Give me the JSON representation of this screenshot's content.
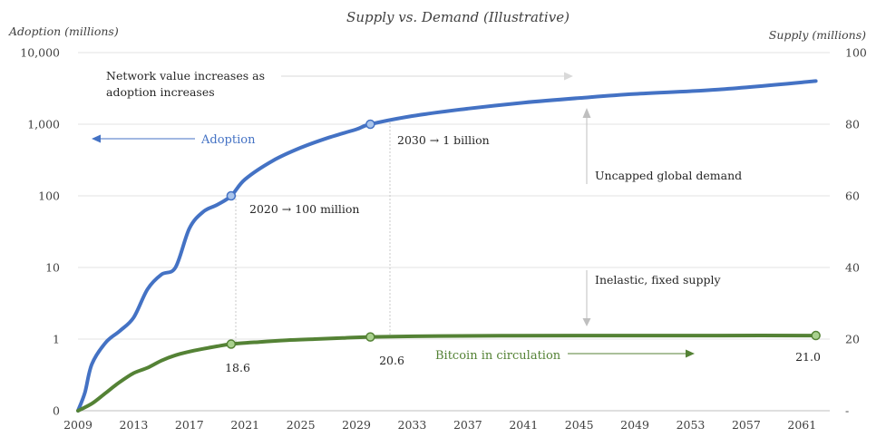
{
  "chart_data": {
    "type": "line",
    "title": "Supply vs. Demand (Illustrative)",
    "y_left_label": "Adoption (millions)",
    "y_right_label": "Supply (millions)",
    "x_ticks": [
      "2009",
      "2013",
      "2017",
      "2021",
      "2025",
      "2029",
      "2033",
      "2037",
      "2041",
      "2045",
      "2049",
      "2053",
      "2057",
      "2061"
    ],
    "x_range": [
      2009,
      2063
    ],
    "y_left_ticks": [
      "0",
      "1",
      "10",
      "100",
      "1,000",
      "10,000"
    ],
    "y_left_scale": "log",
    "y_right_ticks": [
      "-",
      "20",
      "40",
      "60",
      "80",
      "100"
    ],
    "y_right_range": [
      0,
      100
    ],
    "grid": true,
    "colors": {
      "adoption": "#4472c4",
      "supply": "#548235",
      "annotation": "#a6a6a6",
      "text": "#262626"
    },
    "series": [
      {
        "name": "Adoption",
        "axis": "left",
        "x": [
          2009,
          2009.5,
          2010,
          2011,
          2012,
          2013,
          2014,
          2015,
          2016,
          2017,
          2018,
          2019,
          2020,
          2021,
          2023,
          2025,
          2027,
          2029,
          2030,
          2033,
          2037,
          2041,
          2045,
          2049,
          2055,
          2062
        ],
        "y": [
          0.1,
          0.18,
          0.45,
          0.9,
          1.3,
          2,
          5,
          8,
          10,
          35,
          60,
          75,
          100,
          170,
          310,
          470,
          650,
          850,
          1000,
          1300,
          1650,
          2000,
          2320,
          2650,
          3050,
          4000
        ]
      },
      {
        "name": "Bitcoin in circulation",
        "axis": "right",
        "x": [
          2009,
          2010,
          2011,
          2012,
          2013,
          2014,
          2015,
          2016,
          2017,
          2018,
          2019,
          2020,
          2022,
          2024,
          2026,
          2028,
          2030,
          2035,
          2040,
          2045,
          2050,
          2055,
          2062
        ],
        "y": [
          0,
          2,
          5,
          8,
          10.5,
          12,
          14,
          15.5,
          16.5,
          17.3,
          18,
          18.6,
          19.2,
          19.7,
          20,
          20.3,
          20.6,
          20.85,
          20.95,
          20.98,
          20.99,
          21,
          21
        ]
      }
    ],
    "markers": [
      {
        "series": "Adoption",
        "x": 2020,
        "y": 100
      },
      {
        "series": "Adoption",
        "x": 2030,
        "y": 1000
      },
      {
        "series": "Bitcoin in circulation",
        "x": 2020,
        "y": 18.6
      },
      {
        "series": "Bitcoin in circulation",
        "x": 2030,
        "y": 20.6
      },
      {
        "series": "Bitcoin in circulation",
        "x": 2062,
        "y": 21
      }
    ],
    "annotations": {
      "network_value_line1": "Network value increases as",
      "network_value_line2": "adoption increases",
      "adoption_label": "Adoption",
      "adoption_1b": "2030 → 1 billion",
      "adoption_100m": "2020 → 100 million",
      "uncapped": "Uncapped global demand",
      "inelastic": "Inelastic, fixed supply",
      "circulation_label": "Bitcoin in circulation",
      "val_2020": "18.6",
      "val_2030": "20.6",
      "val_2062": "21.0"
    }
  }
}
